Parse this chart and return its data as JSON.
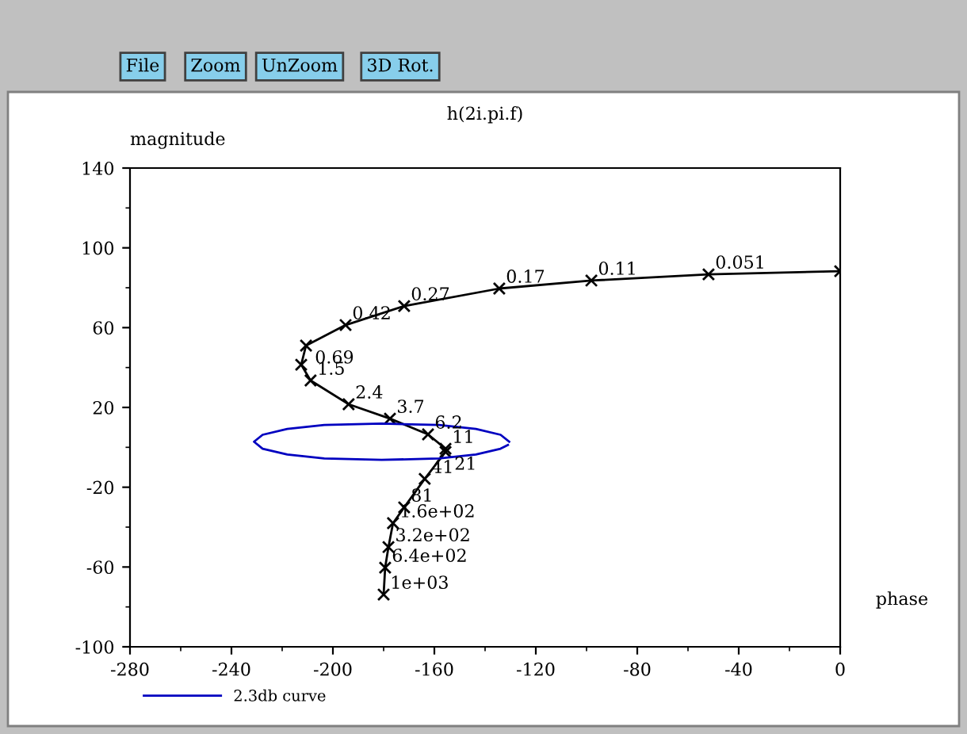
{
  "chart_data": {
    "type": "line",
    "title": "h(2i.pi.f)",
    "xlabel": "phase",
    "ylabel": "magnitude",
    "series": [
      {
        "color": "#000000",
        "marker": "cross",
        "x": [
          0,
          -51.9,
          -98.1,
          -134.4,
          -171.9,
          -195,
          -210.6,
          -212.5,
          -208.8,
          -193.8,
          -177.5,
          -162.5,
          -155.6,
          -155.6,
          -163.8,
          -171.9,
          -176.3,
          -178.1,
          -179.4,
          -180
        ],
        "values": [
          88.3,
          86.7,
          83.6,
          79.6,
          70.8,
          61.3,
          51,
          41.4,
          33.5,
          21.6,
          14.4,
          6.5,
          -0.7,
          -2.3,
          -15.8,
          -30.1,
          -38,
          -50,
          -60.3,
          -73.8
        ]
      },
      {
        "name": "2.3db curve",
        "color": "#0000c0",
        "marker": "none",
        "x": [
          -130.5,
          -133.9,
          -143.6,
          -158.2,
          -180.8,
          -203.4,
          -218.0,
          -227.7,
          -231.1,
          -227.7,
          -218.0,
          -203.4,
          -180.8,
          -158.2,
          -143.6,
          -133.9,
          -131.0
        ],
        "values": [
          2.8,
          6.3,
          9.2,
          11.2,
          11.9,
          11.2,
          9.2,
          6.3,
          2.8,
          -0.7,
          -3.6,
          -5.6,
          -6.3,
          -5.6,
          -3.6,
          -0.7,
          1.2
        ]
      }
    ],
    "xlim": [
      -280,
      0
    ],
    "xticks": [
      -280,
      -240,
      -200,
      -160,
      -120,
      -80,
      -40,
      0
    ],
    "ylim": [
      -100,
      140
    ],
    "yticks": [
      -100,
      -60,
      -20,
      20,
      60,
      100,
      140
    ],
    "grid": false,
    "legend": "bottom left",
    "line_style": "solid",
    "annotations": [
      {
        "text": "0.051",
        "x": -51.9,
        "y": 86.7
      },
      {
        "text": "0.11",
        "x": -98.1,
        "y": 83.6
      },
      {
        "text": "0.17",
        "x": -134.4,
        "y": 79.6
      },
      {
        "text": "0.27",
        "x": -171.9,
        "y": 70.8
      },
      {
        "text": "0.42",
        "x": -195,
        "y": 61.3
      },
      {
        "text": "0.69",
        "x": -210.6,
        "y": 51
      },
      {
        "text": "1.5",
        "x": -208.8,
        "y": 33.5
      },
      {
        "text": "2.4",
        "x": -193.8,
        "y": 21.6
      },
      {
        "text": "3.7",
        "x": -177.5,
        "y": 14.4
      },
      {
        "text": "6.2",
        "x": -162.5,
        "y": 6.5
      },
      {
        "text": "11",
        "x": -155.6,
        "y": -0.7
      },
      {
        "text": "21",
        "x": -155.6,
        "y": -2.3
      },
      {
        "text": "41",
        "x": -163.8,
        "y": -15.8
      },
      {
        "text": "81",
        "x": -171.9,
        "y": -30.1
      },
      {
        "text": "1.6e+02",
        "x": -176.3,
        "y": -38
      },
      {
        "text": "3.2e+02",
        "x": -178.1,
        "y": -50
      },
      {
        "text": "6.4e+02",
        "x": -179.4,
        "y": -60.3
      },
      {
        "text": "1e+03",
        "x": -180,
        "y": -73.8
      },
      "File",
      "Zoom",
      "UnZoom",
      "3D Rot."
    ]
  }
}
